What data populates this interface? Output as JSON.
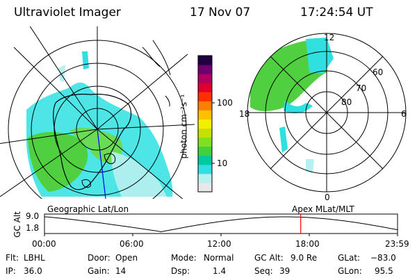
{
  "header": {
    "instrument": "Ultraviolet Imager",
    "date": "17 Nov 07",
    "time": "17:24:54 UT"
  },
  "colorbar": {
    "unit_label": "photon cm⁻²s⁻¹",
    "ticks": [
      {
        "label": "100",
        "value": 100
      },
      {
        "label": "10",
        "value": 10
      }
    ],
    "scale": "log",
    "colors": [
      "#e8e8e8",
      "#b8f0f0",
      "#30e0e0",
      "#00c8a0",
      "#40d040",
      "#80e020",
      "#c8e000",
      "#f0f000",
      "#ffc000",
      "#ff8000",
      "#ff3000",
      "#e00030",
      "#b00060",
      "#700070",
      "#200040"
    ]
  },
  "left_panel": {
    "label": "Geographic Lat/Lon",
    "colors": {
      "grid": "#000000",
      "coast": "#000000",
      "meridian": "#0000ff"
    }
  },
  "right_panel": {
    "label": "Apex MLat/MLT",
    "mlt_labels": {
      "top": "12",
      "left": "18",
      "right": "6",
      "bottom": "0"
    },
    "lat_labels": [
      "60",
      "70",
      "80"
    ]
  },
  "orbit_plot": {
    "ylabel": "GC Alt",
    "y_ticks": [
      "9.0",
      "1.8"
    ],
    "x_ticks": [
      "00:00",
      "06:00",
      "12:00",
      "18:00",
      "23:59"
    ],
    "current_time_color": "#ff0000",
    "current_time_fraction": 0.7257
  },
  "info": {
    "filter_label": "Flt:",
    "filter_value": "LBHL",
    "ip_label": "IP:",
    "ip_value": "36.0",
    "door_label": "Door:",
    "door_value": "Open",
    "gain_label": "Gain:",
    "gain_value": "14",
    "mode_label": "Mode:",
    "mode_value": "Normal",
    "dsp_label": "Dsp:",
    "dsp_value": "1.4",
    "gcalt_label": "GC Alt:",
    "gcalt_value": "9.0 Re",
    "seq_label": "Seq:",
    "seq_value": "39",
    "glat_label": "GLat:",
    "glat_value": "−83.0",
    "glon_label": "GLon:",
    "glon_value": "95.5"
  }
}
